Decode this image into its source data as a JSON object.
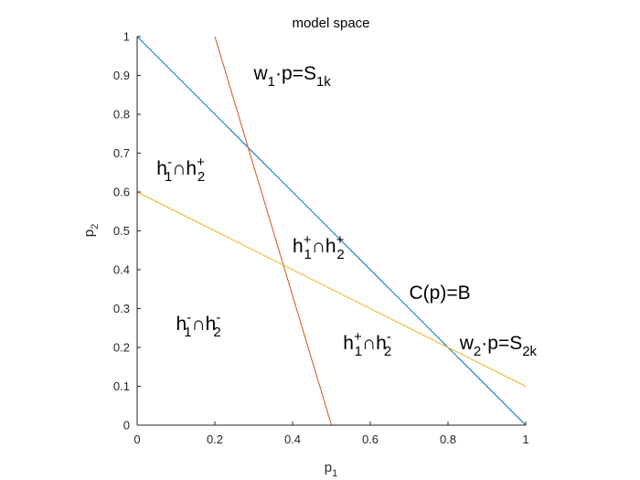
{
  "chart_data": {
    "type": "line",
    "title": "model space",
    "xlabel": {
      "base": "p",
      "sub": "1"
    },
    "ylabel": {
      "base": "p",
      "sub": "2"
    },
    "xlim": [
      0,
      1
    ],
    "ylim": [
      0,
      1
    ],
    "xticks": [
      0,
      0.2,
      0.4,
      0.6,
      0.8,
      1
    ],
    "yticks": [
      0,
      0.1,
      0.2,
      0.3,
      0.4,
      0.5,
      0.6,
      0.7,
      0.8,
      0.9,
      1
    ],
    "xtick_labels": [
      "0",
      "0.2",
      "0.4",
      "0.6",
      "0.8",
      "1"
    ],
    "ytick_labels": [
      "0",
      "0.1",
      "0.2",
      "0.3",
      "0.4",
      "0.5",
      "0.6",
      "0.7",
      "0.8",
      "0.9",
      "1"
    ],
    "grid": false,
    "box": false,
    "series": [
      {
        "color": "#0072BD",
        "x": [
          0,
          1
        ],
        "y": [
          1,
          0
        ]
      },
      {
        "color": "#D95319",
        "x": [
          0.2,
          0.5
        ],
        "y": [
          1,
          0
        ]
      },
      {
        "color": "#EDB120",
        "x": [
          0,
          1
        ],
        "y": [
          0.6,
          0.1
        ]
      }
    ],
    "annotations": [
      {
        "x": 0.3,
        "y": 0.89,
        "parts": [
          [
            "w",
            ""
          ],
          [
            "1",
            "sub"
          ],
          [
            "·p=S",
            ""
          ],
          [
            "1k",
            "sub"
          ]
        ]
      },
      {
        "x": 0.05,
        "y": 0.645,
        "parts": [
          [
            "h",
            ""
          ],
          [
            "-",
            "sup"
          ],
          [
            "1",
            "sub"
          ],
          [
            "∩h",
            ""
          ],
          [
            "+",
            "sup"
          ],
          [
            "2",
            "sub"
          ]
        ]
      },
      {
        "x": 0.4,
        "y": 0.445,
        "parts": [
          [
            "h",
            ""
          ],
          [
            "+",
            "sup"
          ],
          [
            "1",
            "sub"
          ],
          [
            "∩h",
            ""
          ],
          [
            "+",
            "sup"
          ],
          [
            "2",
            "sub"
          ]
        ]
      },
      {
        "x": 0.7,
        "y": 0.325,
        "parts": [
          [
            "C(p)=B",
            ""
          ]
        ]
      },
      {
        "x": 0.1,
        "y": 0.245,
        "parts": [
          [
            "h",
            ""
          ],
          [
            "-",
            "sup"
          ],
          [
            "1",
            "sub"
          ],
          [
            "∩h",
            ""
          ],
          [
            "-",
            "sup"
          ],
          [
            "2",
            "sub"
          ]
        ]
      },
      {
        "x": 0.53,
        "y": 0.195,
        "parts": [
          [
            "h",
            ""
          ],
          [
            "+",
            "sup"
          ],
          [
            "1",
            "sub"
          ],
          [
            "∩h",
            ""
          ],
          [
            "-",
            "sup"
          ],
          [
            "2",
            "sub"
          ]
        ]
      },
      {
        "x": 0.83,
        "y": 0.195,
        "parts": [
          [
            "w",
            ""
          ],
          [
            "2",
            "sub"
          ],
          [
            "·p=S",
            ""
          ],
          [
            "2k",
            "sub"
          ]
        ]
      }
    ]
  }
}
